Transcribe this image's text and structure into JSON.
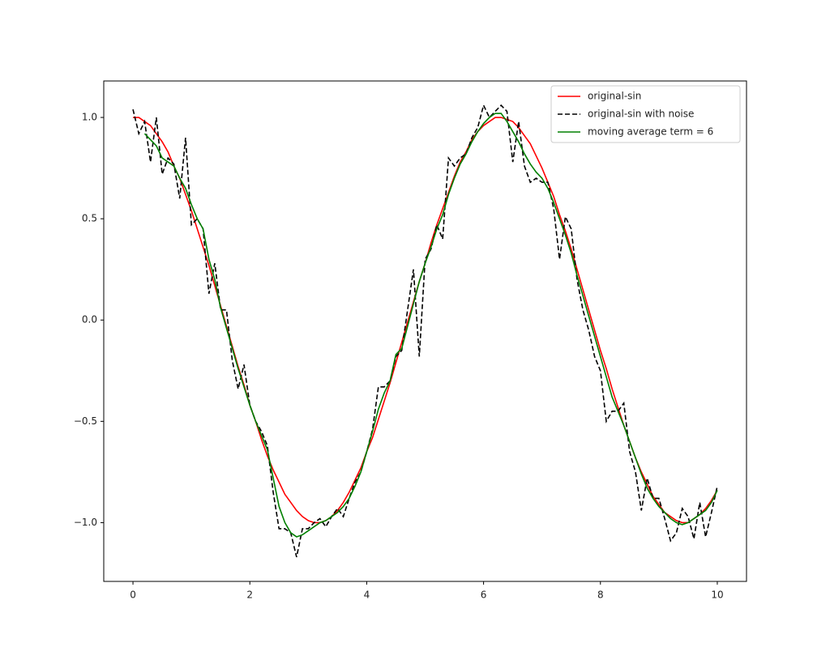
{
  "chart_data": {
    "type": "line",
    "x": [
      0,
      0.1,
      0.2,
      0.3,
      0.4,
      0.5,
      0.6,
      0.7,
      0.8,
      0.9,
      1,
      1.1,
      1.2,
      1.3,
      1.4,
      1.5,
      1.6,
      1.7,
      1.8,
      1.9,
      2,
      2.1,
      2.2,
      2.3,
      2.4,
      2.5,
      2.6,
      2.7,
      2.8,
      2.9,
      3,
      3.1,
      3.2,
      3.3,
      3.4,
      3.5,
      3.6,
      3.7,
      3.8,
      3.9,
      4,
      4.1,
      4.2,
      4.3,
      4.4,
      4.5,
      4.6,
      4.7,
      4.8,
      4.9,
      5,
      5.1,
      5.2,
      5.3,
      5.4,
      5.5,
      5.6,
      5.7,
      5.8,
      5.9,
      6,
      6.1,
      6.2,
      6.3,
      6.4,
      6.5,
      6.6,
      6.7,
      6.8,
      6.9,
      7,
      7.1,
      7.2,
      7.3,
      7.4,
      7.5,
      7.6,
      7.7,
      7.8,
      7.9,
      8,
      8.1,
      8.2,
      8.3,
      8.4,
      8.5,
      8.6,
      8.7,
      8.8,
      8.9,
      9,
      9.1,
      9.2,
      9.3,
      9.4,
      9.5,
      9.6,
      9.7,
      9.8,
      9.9,
      10
    ],
    "series": [
      {
        "name": "original-sin",
        "color": "#ff0000",
        "dashed": false,
        "values": [
          1.0,
          1.0,
          0.98,
          0.96,
          0.92,
          0.88,
          0.83,
          0.76,
          0.7,
          0.62,
          0.54,
          0.45,
          0.36,
          0.27,
          0.17,
          0.07,
          -0.03,
          -0.13,
          -0.23,
          -0.32,
          -0.42,
          -0.5,
          -0.59,
          -0.67,
          -0.74,
          -0.8,
          -0.86,
          -0.9,
          -0.94,
          -0.97,
          -0.99,
          -1.0,
          -1.0,
          -0.99,
          -0.97,
          -0.94,
          -0.9,
          -0.85,
          -0.79,
          -0.73,
          -0.65,
          -0.58,
          -0.49,
          -0.4,
          -0.31,
          -0.21,
          -0.11,
          -0.01,
          0.09,
          0.19,
          0.28,
          0.38,
          0.47,
          0.55,
          0.63,
          0.71,
          0.78,
          0.83,
          0.89,
          0.93,
          0.96,
          0.98,
          1.0,
          1.0,
          0.99,
          0.98,
          0.95,
          0.91,
          0.87,
          0.81,
          0.75,
          0.68,
          0.61,
          0.52,
          0.44,
          0.35,
          0.25,
          0.15,
          0.05,
          -0.05,
          -0.15,
          -0.24,
          -0.34,
          -0.43,
          -0.52,
          -0.6,
          -0.68,
          -0.75,
          -0.81,
          -0.87,
          -0.91,
          -0.95,
          -0.97,
          -0.99,
          -1.0,
          -1.0,
          -0.98,
          -0.96,
          -0.93,
          -0.89,
          -0.84
        ]
      },
      {
        "name": "original-sin with noise",
        "color": "#000000",
        "dashed": true,
        "values": [
          1.04,
          0.92,
          0.98,
          0.78,
          1.0,
          0.72,
          0.8,
          0.77,
          0.6,
          0.9,
          0.47,
          0.5,
          0.45,
          0.13,
          0.28,
          0.05,
          0.05,
          -0.2,
          -0.34,
          -0.22,
          -0.42,
          -0.5,
          -0.55,
          -0.62,
          -0.85,
          -1.03,
          -1.03,
          -1.05,
          -1.17,
          -1.03,
          -1.03,
          -1.0,
          -0.98,
          -1.02,
          -0.97,
          -0.93,
          -0.97,
          -0.88,
          -0.8,
          -0.75,
          -0.65,
          -0.54,
          -0.33,
          -0.33,
          -0.3,
          -0.18,
          -0.15,
          0.05,
          0.25,
          -0.18,
          0.3,
          0.35,
          0.47,
          0.4,
          0.8,
          0.76,
          0.8,
          0.82,
          0.9,
          0.95,
          1.06,
          1.0,
          1.03,
          1.06,
          1.03,
          0.78,
          0.98,
          0.76,
          0.68,
          0.7,
          0.68,
          0.68,
          0.55,
          0.3,
          0.51,
          0.45,
          0.2,
          0.05,
          -0.05,
          -0.18,
          -0.25,
          -0.5,
          -0.45,
          -0.45,
          -0.41,
          -0.65,
          -0.75,
          -0.94,
          -0.78,
          -0.88,
          -0.88,
          -0.98,
          -1.09,
          -1.05,
          -0.93,
          -0.97,
          -1.08,
          -0.9,
          -1.07,
          -0.95,
          -0.82
        ]
      },
      {
        "name": "moving average term = 6",
        "color": "#008000",
        "dashed": false,
        "values": [
          null,
          null,
          0.92,
          0.89,
          0.86,
          0.8,
          0.78,
          0.76,
          0.7,
          0.65,
          0.57,
          0.5,
          0.45,
          0.3,
          0.2,
          0.06,
          -0.04,
          -0.14,
          -0.24,
          -0.33,
          -0.42,
          -0.5,
          -0.57,
          -0.64,
          -0.78,
          -0.92,
          -1.0,
          -1.05,
          -1.07,
          -1.06,
          -1.04,
          -1.02,
          -1.0,
          -0.99,
          -0.97,
          -0.95,
          -0.92,
          -0.88,
          -0.82,
          -0.75,
          -0.65,
          -0.55,
          -0.44,
          -0.36,
          -0.3,
          -0.17,
          -0.14,
          -0.03,
          0.08,
          0.19,
          0.28,
          0.36,
          0.45,
          0.52,
          0.62,
          0.7,
          0.77,
          0.82,
          0.88,
          0.93,
          0.97,
          1.0,
          1.02,
          1.02,
          0.98,
          0.93,
          0.88,
          0.82,
          0.77,
          0.73,
          0.7,
          0.65,
          0.58,
          0.5,
          0.42,
          0.33,
          0.22,
          0.12,
          0.02,
          -0.08,
          -0.18,
          -0.28,
          -0.38,
          -0.45,
          -0.52,
          -0.6,
          -0.68,
          -0.76,
          -0.83,
          -0.88,
          -0.92,
          -0.95,
          -0.98,
          -1.0,
          -1.01,
          -1.0,
          -0.98,
          -0.96,
          -0.94,
          -0.9,
          -0.84
        ]
      }
    ],
    "xlim": [
      -0.5,
      10.5
    ],
    "ylim": [
      -1.29,
      1.18
    ],
    "xticks": [
      0,
      2,
      4,
      6,
      8,
      10
    ],
    "yticks": [
      {
        "value": -1,
        "label": "−1.0"
      },
      {
        "value": -0.5,
        "label": "−0.5"
      },
      {
        "value": 0,
        "label": "0.0"
      },
      {
        "value": 0.5,
        "label": "0.5"
      },
      {
        "value": 1,
        "label": "1.0"
      }
    ],
    "legend": "upper right"
  }
}
